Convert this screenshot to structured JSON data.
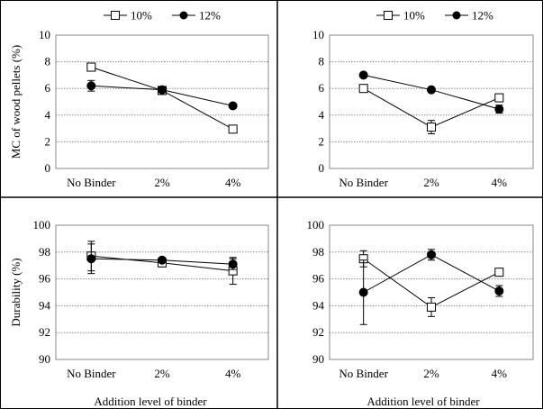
{
  "figure": {
    "xlabel": "Addition  level  of binder"
  },
  "chart_data": [
    {
      "type": "line",
      "categories": [
        "No Binder",
        "2%",
        "4%"
      ],
      "ylabel": "MC of wood pellets (%)",
      "ylim": [
        0,
        10
      ],
      "yticks": [
        0,
        2,
        4,
        6,
        8,
        10
      ],
      "grid": true,
      "legend": "top",
      "series": [
        {
          "name": "10%",
          "marker": "open-square",
          "values": [
            7.6,
            5.85,
            2.95
          ],
          "err": [
            0.3,
            0.2,
            0.1
          ]
        },
        {
          "name": "12%",
          "marker": "filled-circle",
          "values": [
            6.2,
            5.9,
            4.7
          ],
          "err": [
            0.4,
            0.2,
            0.1
          ]
        }
      ]
    },
    {
      "type": "line",
      "categories": [
        "No Binder",
        "2%",
        "4%"
      ],
      "ylabel": "",
      "ylim": [
        0,
        10
      ],
      "yticks": [
        0,
        2,
        4,
        6,
        8,
        10
      ],
      "grid": true,
      "legend": "top",
      "series": [
        {
          "name": "10%",
          "marker": "open-square",
          "values": [
            6.0,
            3.1,
            5.3
          ],
          "err": [
            0.1,
            0.5,
            0.1
          ]
        },
        {
          "name": "12%",
          "marker": "filled-circle",
          "values": [
            7.0,
            5.9,
            4.45
          ],
          "err": [
            0.1,
            0.1,
            0.3
          ]
        }
      ]
    },
    {
      "type": "line",
      "categories": [
        "No Binder",
        "2%",
        "4%"
      ],
      "ylabel": "Durability (%)",
      "ylim": [
        90,
        100
      ],
      "yticks": [
        90,
        92,
        94,
        96,
        98,
        100
      ],
      "grid": true,
      "legend": "none",
      "series": [
        {
          "name": "10%",
          "marker": "open-square",
          "values": [
            97.7,
            97.2,
            96.6
          ],
          "err": [
            1.1,
            0.3,
            1.0
          ]
        },
        {
          "name": "12%",
          "marker": "filled-circle",
          "values": [
            97.5,
            97.4,
            97.1
          ],
          "err": [
            1.1,
            0.1,
            0.4
          ]
        }
      ]
    },
    {
      "type": "line",
      "categories": [
        "No Binder",
        "2%",
        "4%"
      ],
      "ylabel": "",
      "ylim": [
        90,
        100
      ],
      "yticks": [
        90,
        92,
        94,
        96,
        98,
        100
      ],
      "grid": true,
      "legend": "none",
      "series": [
        {
          "name": "10%",
          "marker": "open-square",
          "values": [
            97.5,
            93.9,
            96.5
          ],
          "err": [
            0.6,
            0.7,
            0.1
          ]
        },
        {
          "name": "12%",
          "marker": "filled-circle",
          "values": [
            95.0,
            97.8,
            95.1
          ],
          "err": [
            2.4,
            0.4,
            0.4
          ]
        }
      ]
    }
  ]
}
